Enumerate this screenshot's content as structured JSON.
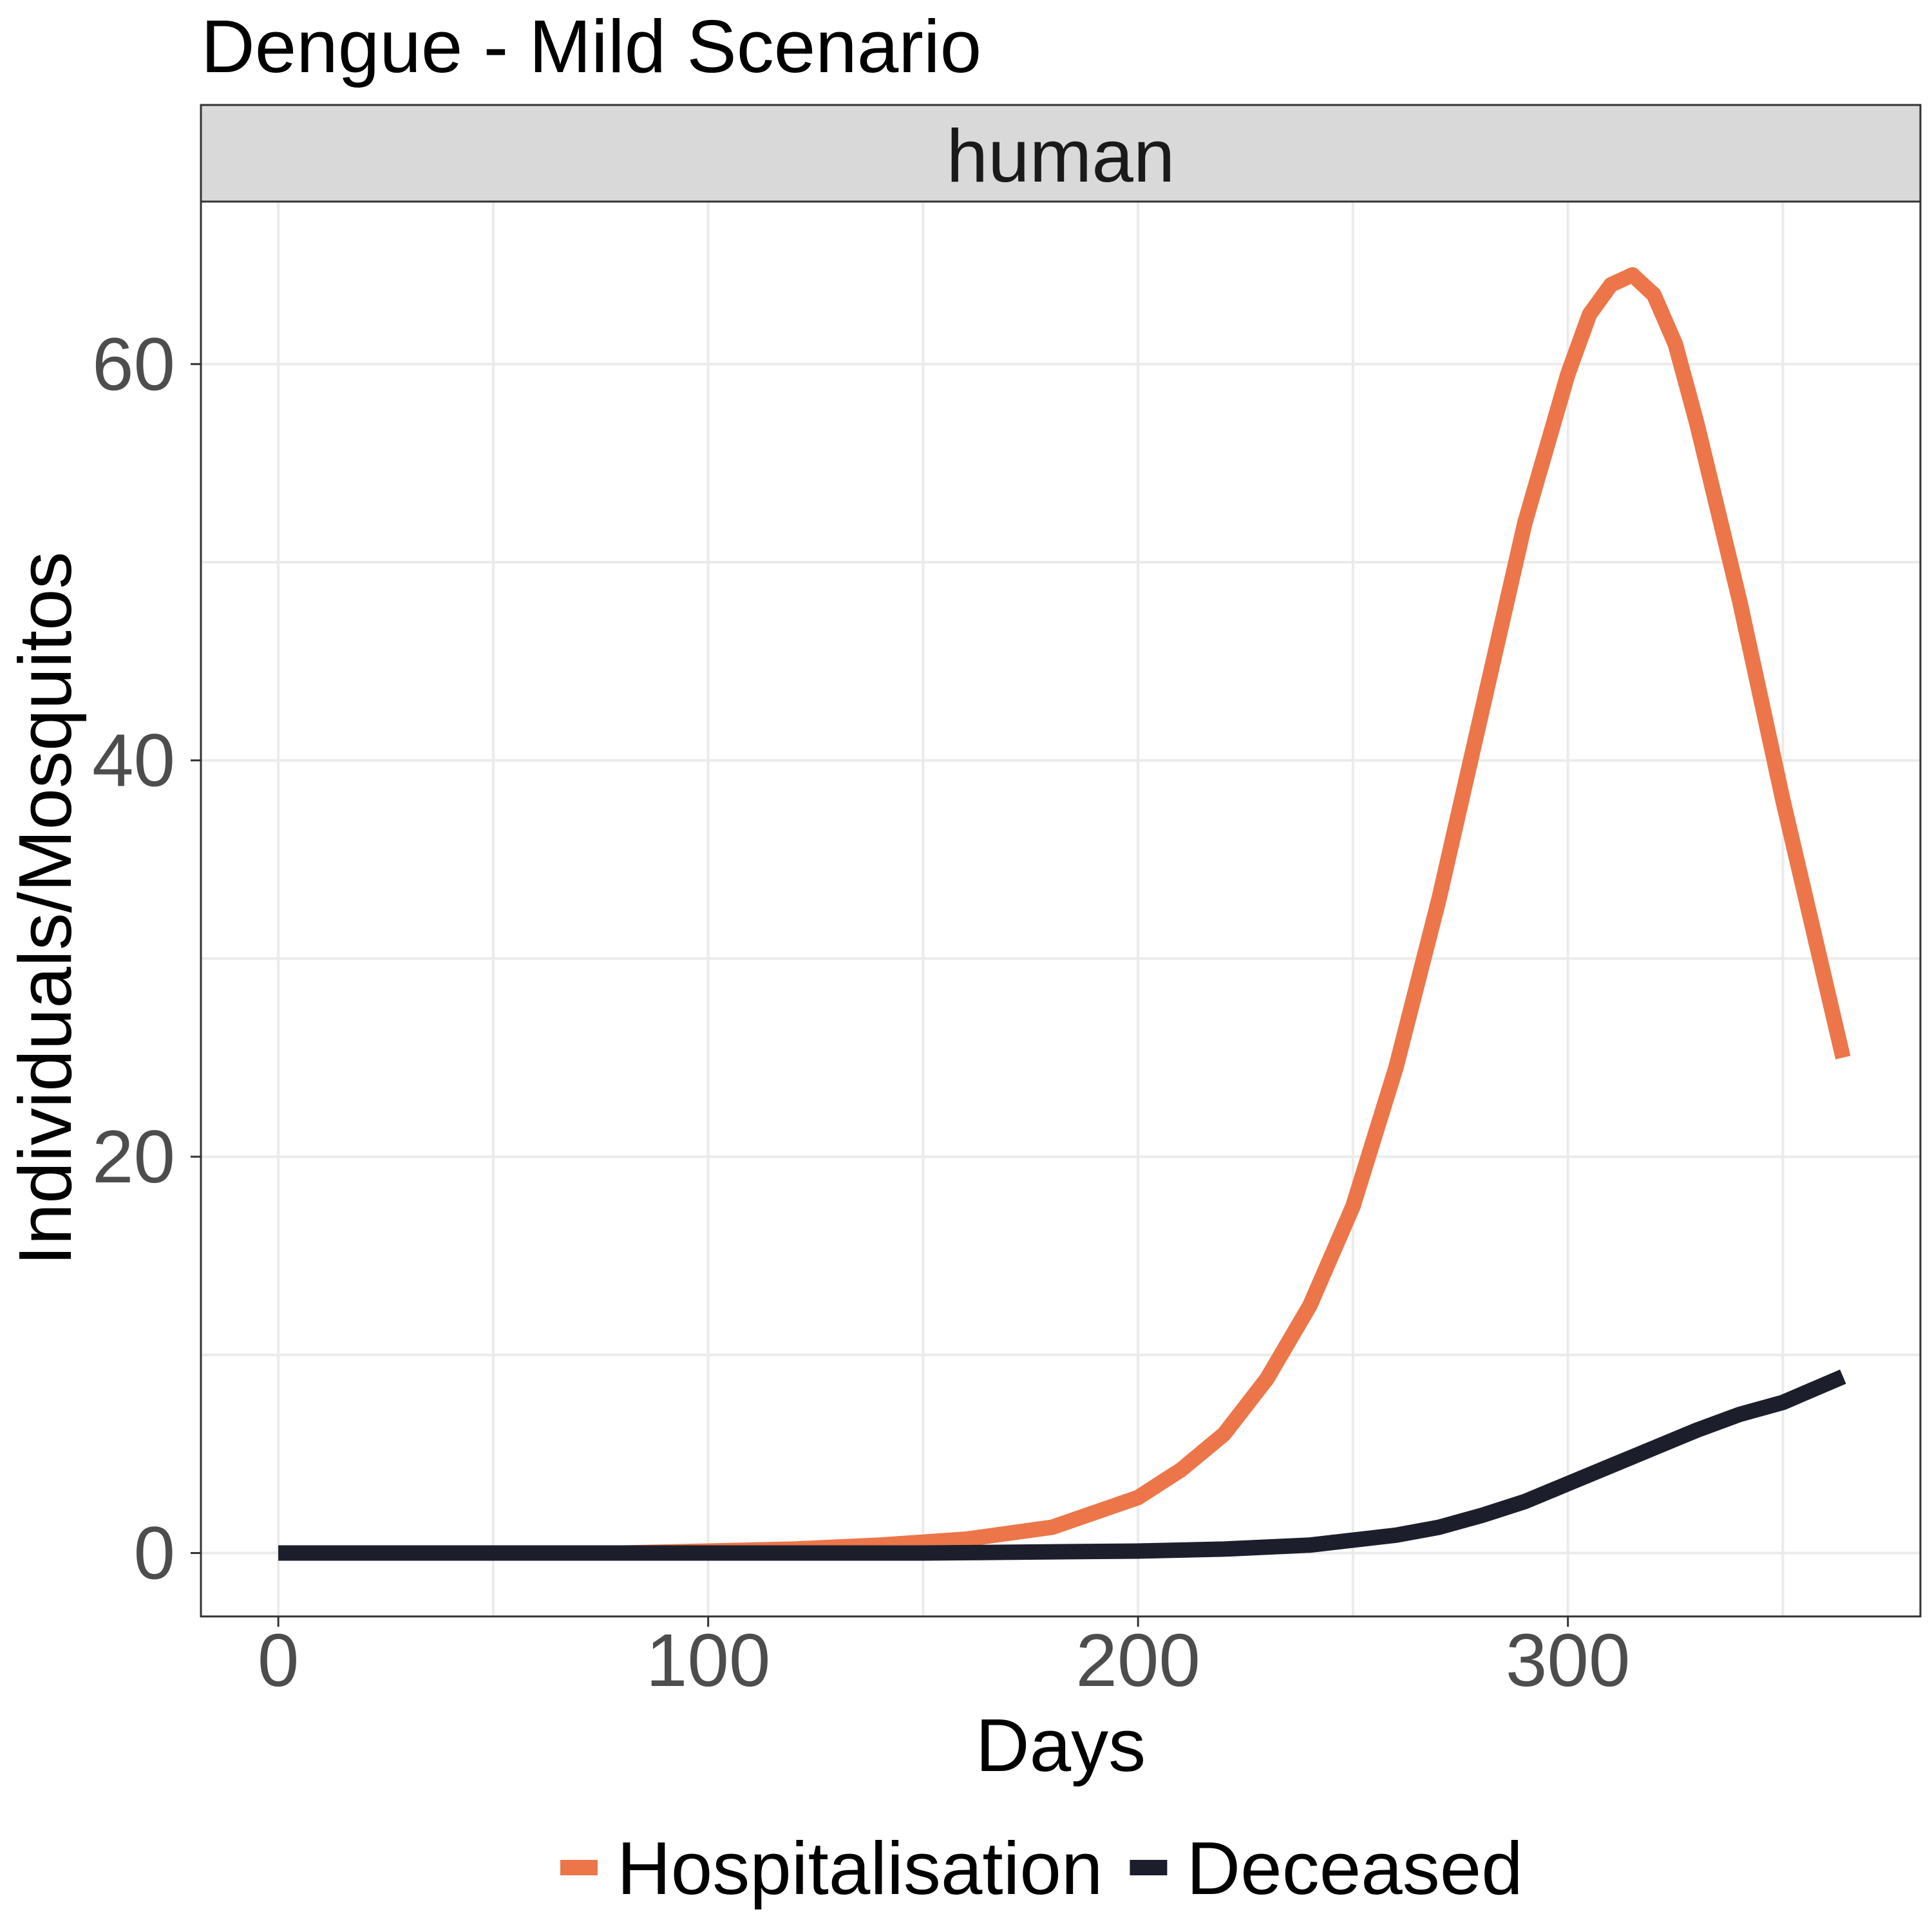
{
  "chart_data": {
    "type": "line",
    "title": "Dengue - Mild Scenario",
    "facet_label": "human",
    "xlabel": "Days",
    "ylabel": "Individuals/Mosquitos",
    "xlim": [
      -18,
      382
    ],
    "ylim": [
      -3.2,
      68.2
    ],
    "x_ticks": [
      0,
      100,
      200,
      300
    ],
    "y_ticks": [
      0,
      20,
      40,
      60
    ],
    "grid": true,
    "legend_position": "bottom",
    "series": [
      {
        "name": "Hospitalisation",
        "color": "#ec7649",
        "x": [
          0,
          20,
          40,
          60,
          80,
          100,
          120,
          140,
          160,
          180,
          200,
          210,
          220,
          230,
          240,
          250,
          260,
          270,
          280,
          290,
          300,
          305,
          310,
          315,
          320,
          325,
          330,
          340,
          350,
          364
        ],
        "y": [
          0,
          0,
          0,
          0,
          0,
          0.1,
          0.2,
          0.4,
          0.7,
          1.3,
          2.8,
          4.2,
          6.0,
          8.8,
          12.5,
          17.5,
          24.5,
          33.0,
          42.5,
          52.0,
          59.5,
          62.5,
          64.0,
          64.5,
          63.5,
          61.0,
          57.0,
          48.0,
          38.0,
          25.0
        ]
      },
      {
        "name": "Deceased",
        "color": "#1c1f2b",
        "x": [
          0,
          50,
          100,
          150,
          200,
          220,
          240,
          260,
          270,
          280,
          290,
          300,
          310,
          320,
          330,
          340,
          350,
          364
        ],
        "y": [
          0,
          0,
          0,
          0,
          0.1,
          0.2,
          0.4,
          0.9,
          1.3,
          1.9,
          2.6,
          3.5,
          4.4,
          5.3,
          6.2,
          7.0,
          7.6,
          8.9
        ]
      }
    ]
  }
}
